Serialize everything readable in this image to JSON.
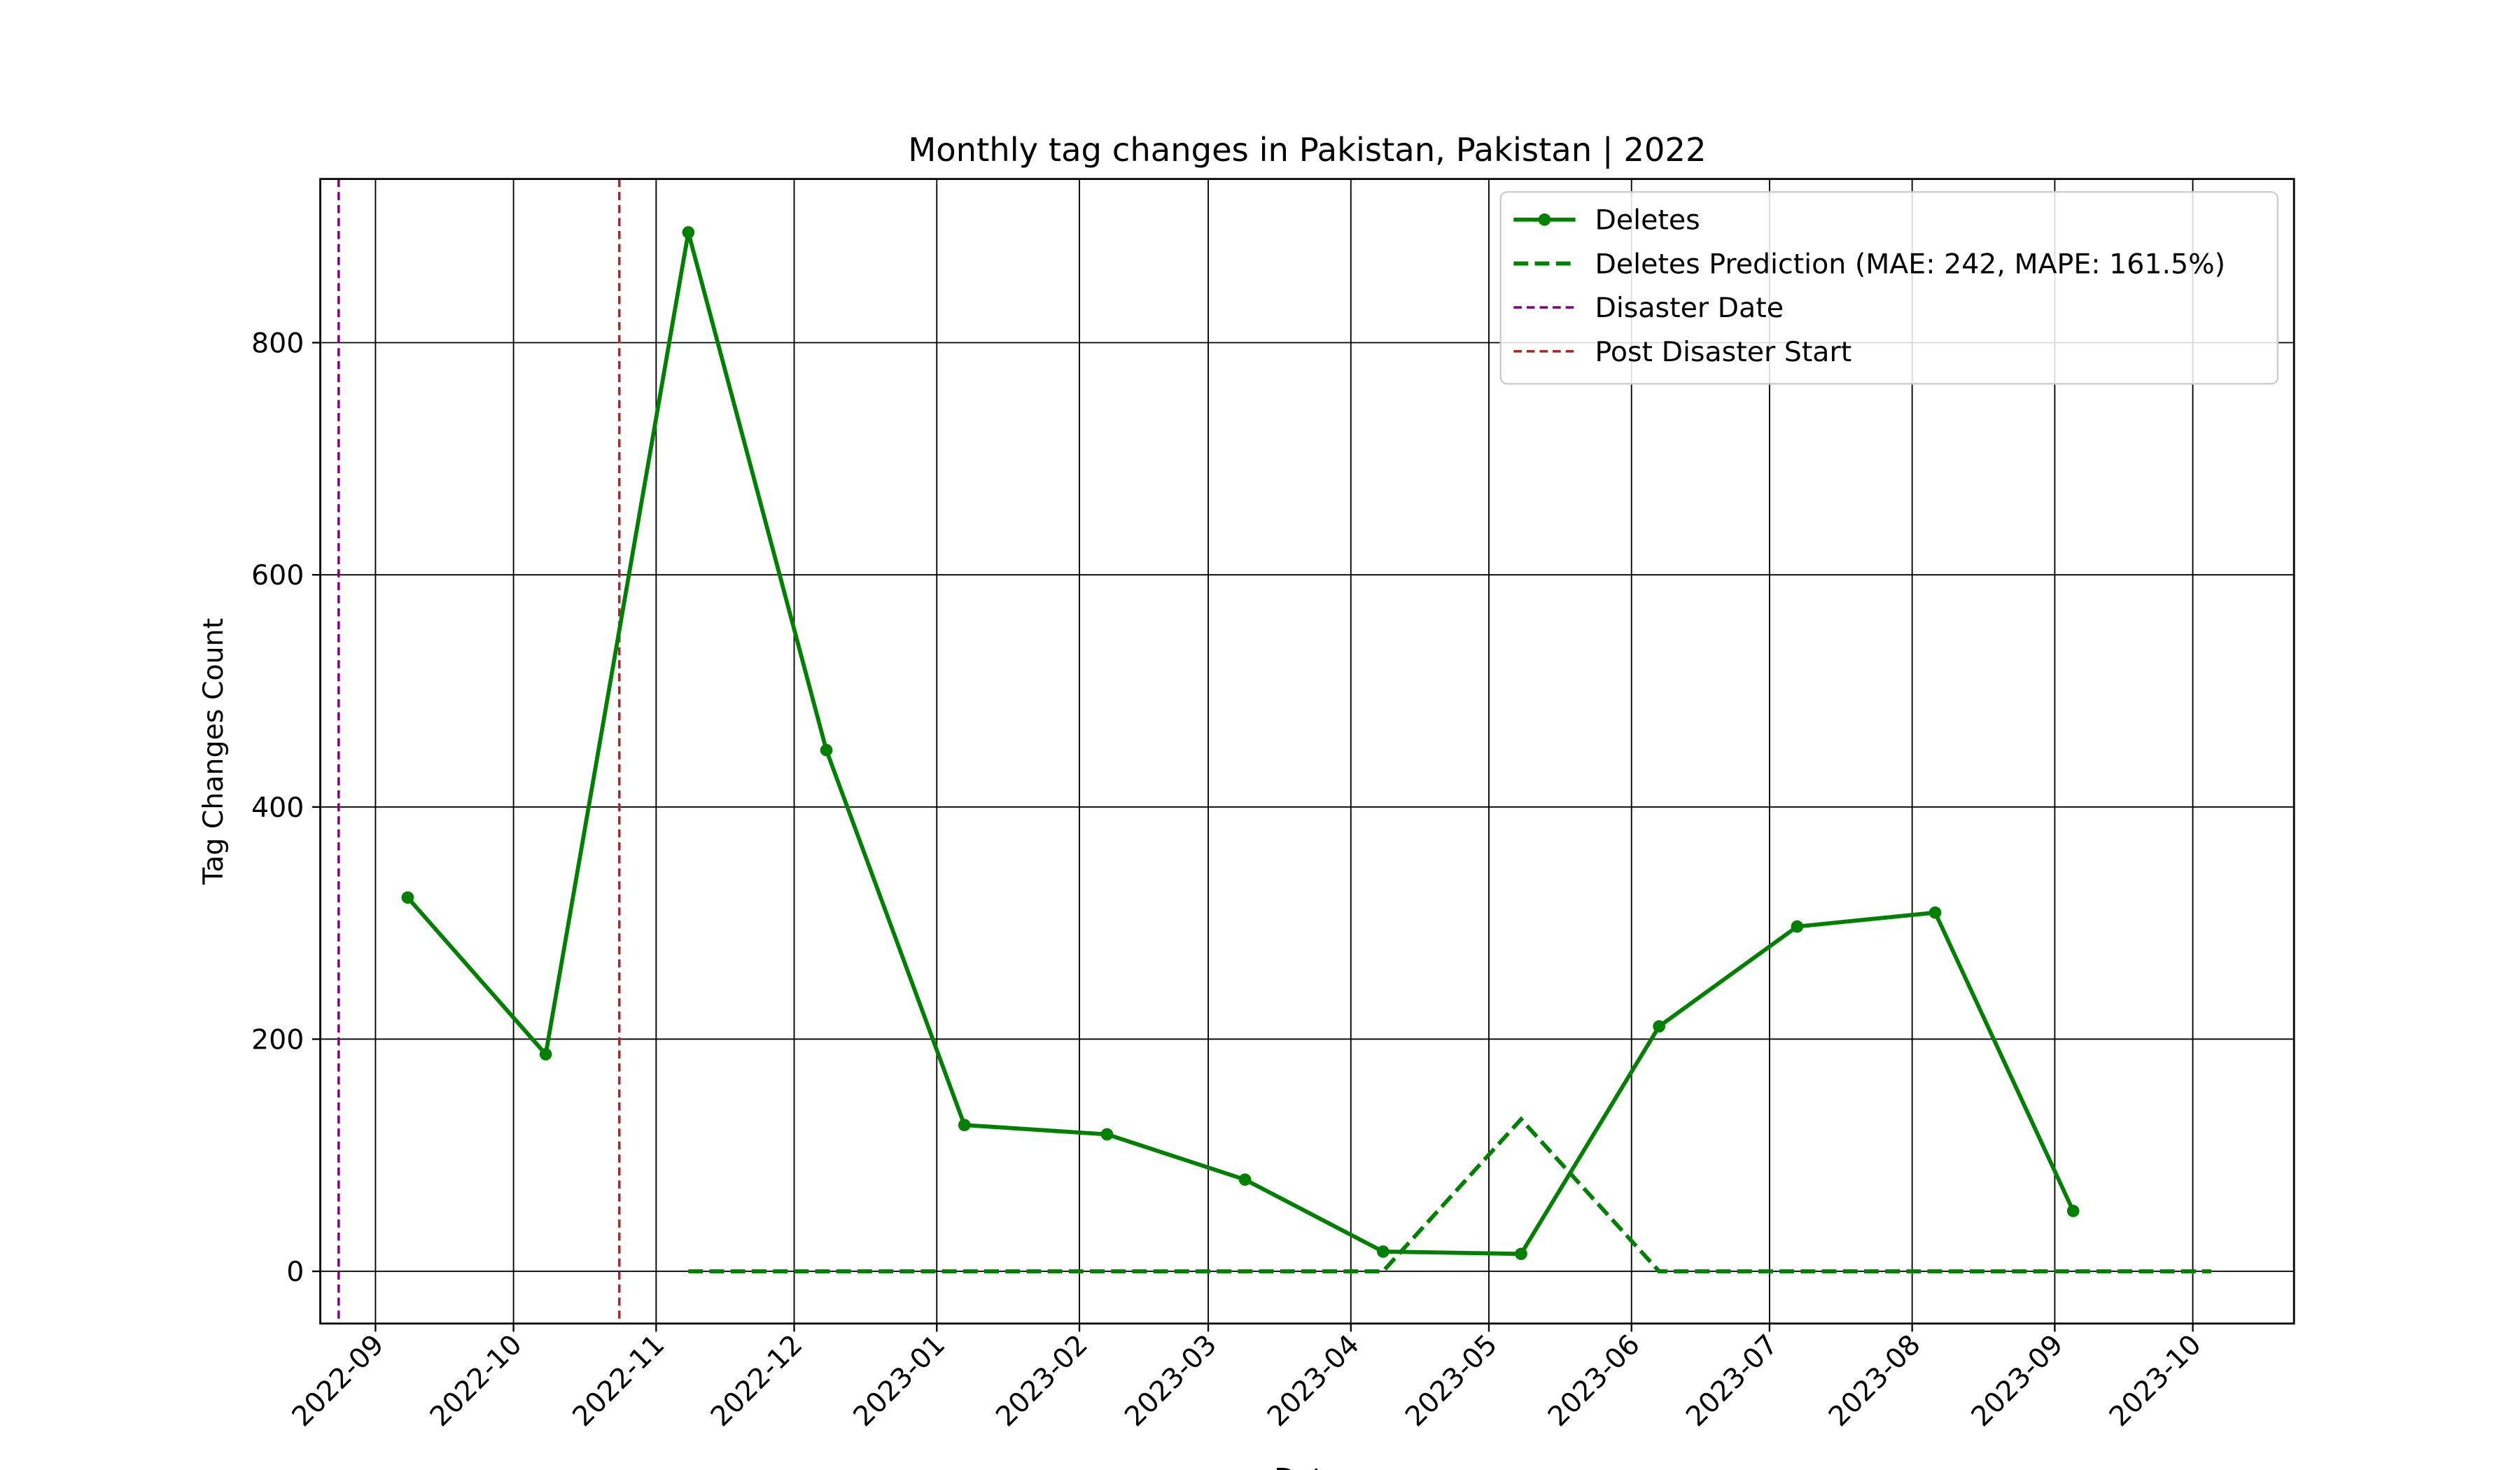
{
  "chart_data": {
    "type": "line",
    "title": "Monthly tag changes in Pakistan, Pakistan | 2022",
    "xlabel": "Date",
    "ylabel": "Tag Changes Count",
    "series": [
      {
        "name": "Deletes",
        "color": "#008000",
        "style": "solid",
        "marker": true,
        "x": [
          "2022-09-08",
          "2022-10-08",
          "2022-11-08",
          "2022-12-08",
          "2023-01-07",
          "2023-02-07",
          "2023-03-09",
          "2023-04-08",
          "2023-05-08",
          "2023-06-07",
          "2023-07-07",
          "2023-08-06",
          "2023-09-05"
        ],
        "values": [
          322,
          187,
          895,
          449,
          126,
          118,
          79,
          17,
          15,
          211,
          297,
          309,
          52
        ]
      },
      {
        "name": "Deletes Prediction (MAE: 242, MAPE: 161.5%)",
        "color": "#008000",
        "style": "dashed",
        "marker": false,
        "x": [
          "2022-11-08",
          "2022-12-08",
          "2023-01-07",
          "2023-02-07",
          "2023-03-09",
          "2023-04-08",
          "2023-05-08",
          "2023-06-07",
          "2023-07-07",
          "2023-08-06",
          "2023-09-05",
          "2023-10-05"
        ],
        "values": [
          0,
          0,
          0,
          0,
          0,
          0,
          131,
          0,
          0,
          0,
          0,
          0
        ]
      }
    ],
    "vlines": [
      {
        "name": "Disaster Date",
        "x": "2022-08-24",
        "color": "#800080"
      },
      {
        "name": "Post Disaster Start",
        "x": "2022-10-24",
        "color": "#b22222"
      }
    ],
    "xlim": [
      "2022-08-20",
      "2023-10-23"
    ],
    "xticks": [
      {
        "value": "2022-09-01",
        "label": "2022-09"
      },
      {
        "value": "2022-10-01",
        "label": "2022-10"
      },
      {
        "value": "2022-11-01",
        "label": "2022-11"
      },
      {
        "value": "2022-12-01",
        "label": "2022-12"
      },
      {
        "value": "2023-01-01",
        "label": "2023-01"
      },
      {
        "value": "2023-02-01",
        "label": "2023-02"
      },
      {
        "value": "2023-03-01",
        "label": "2023-03"
      },
      {
        "value": "2023-04-01",
        "label": "2023-04"
      },
      {
        "value": "2023-05-01",
        "label": "2023-05"
      },
      {
        "value": "2023-06-01",
        "label": "2023-06"
      },
      {
        "value": "2023-07-01",
        "label": "2023-07"
      },
      {
        "value": "2023-08-01",
        "label": "2023-08"
      },
      {
        "value": "2023-09-01",
        "label": "2023-09"
      },
      {
        "value": "2023-10-01",
        "label": "2023-10"
      }
    ],
    "ylim": [
      -45,
      941
    ],
    "yticks": [
      0,
      200,
      400,
      600,
      800
    ],
    "grid": true,
    "legend": "upper right"
  }
}
